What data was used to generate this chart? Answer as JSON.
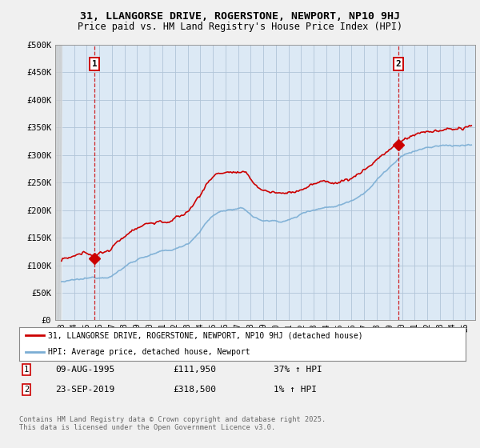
{
  "title_line1": "31, LLANGORSE DRIVE, ROGERSTONE, NEWPORT, NP10 9HJ",
  "title_line2": "Price paid vs. HM Land Registry's House Price Index (HPI)",
  "ylim": [
    0,
    500000
  ],
  "yticks": [
    0,
    50000,
    100000,
    150000,
    200000,
    250000,
    300000,
    350000,
    400000,
    450000,
    500000
  ],
  "ytick_labels": [
    "£0",
    "£50K",
    "£100K",
    "£150K",
    "£200K",
    "£250K",
    "£300K",
    "£350K",
    "£400K",
    "£450K",
    "£500K"
  ],
  "sale1_date": 1995.61,
  "sale1_price": 111950,
  "sale2_date": 2019.72,
  "sale2_price": 318500,
  "house_color": "#cc0000",
  "hpi_color": "#7aadd4",
  "legend_house": "31, LLANGORSE DRIVE, ROGERSTONE, NEWPORT, NP10 9HJ (detached house)",
  "legend_hpi": "HPI: Average price, detached house, Newport",
  "background_color": "#f0f0f0",
  "plot_bg_color": "#dce9f5",
  "grid_color": "#b0c4d8",
  "xstart": 1992.5,
  "xend": 2025.8,
  "footnote": "Contains HM Land Registry data © Crown copyright and database right 2025.\nThis data is licensed under the Open Government Licence v3.0."
}
